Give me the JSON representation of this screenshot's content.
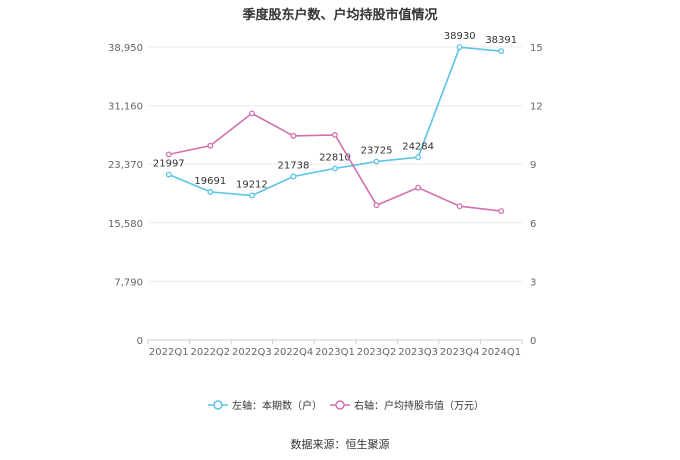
{
  "chart_data": {
    "type": "line",
    "title": "季度股东户数、户均持股市值情况",
    "categories": [
      "2022Q1",
      "2022Q2",
      "2022Q3",
      "2022Q4",
      "2023Q1",
      "2023Q2",
      "2023Q3",
      "2023Q4",
      "2024Q1"
    ],
    "series": [
      {
        "name": "左轴：本期数（户）",
        "axis": "left",
        "color": "#5bc2e7",
        "values": [
          21997,
          19691,
          19212,
          21738,
          22810,
          23725,
          24284,
          38930,
          38391
        ],
        "labels": [
          "21997",
          "19691",
          "19212",
          "21738",
          "22810",
          "23725",
          "24284",
          "38930",
          "38391"
        ]
      },
      {
        "name": "右轴：户均持股市值（万元）",
        "axis": "right",
        "color": "#d36fb0",
        "values": [
          9.5,
          9.95,
          11.6,
          10.45,
          10.5,
          6.9,
          7.8,
          6.85,
          6.6
        ]
      }
    ],
    "left_axis": {
      "min": 0,
      "max": 38950,
      "ticks": [
        "0",
        "7,790",
        "15,580",
        "23,370",
        "31,160",
        "38,950"
      ]
    },
    "right_axis": {
      "min": 0,
      "max": 15,
      "ticks": [
        "0",
        "3",
        "6",
        "9",
        "12",
        "15"
      ]
    },
    "grid": true,
    "legend_position": "bottom"
  },
  "source": "数据来源：恒生聚源"
}
